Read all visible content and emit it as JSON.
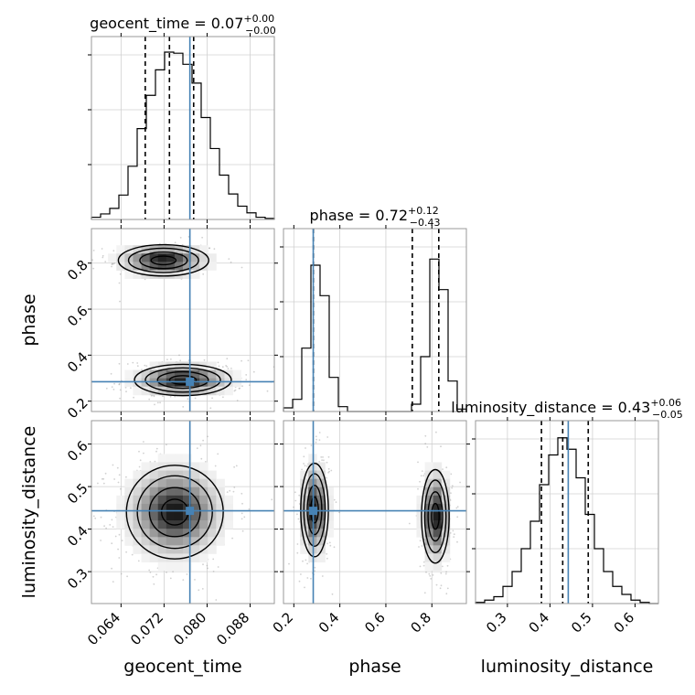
{
  "chart_data": {
    "type": "corner",
    "parameters": [
      "geocent_time",
      "phase",
      "luminosity_distance"
    ],
    "truth_color": "#4682b4",
    "titles": [
      {
        "param": "geocent_time",
        "prefix": "geocent_time = ",
        "value": "0.07",
        "plus": "+0.00",
        "minus": "−0.00"
      },
      {
        "param": "phase",
        "prefix": "phase = ",
        "value": "0.72",
        "plus": "+0.12",
        "minus": "−0.43"
      },
      {
        "param": "luminosity_distance",
        "prefix": "luminosity_distance = ",
        "value": "0.43",
        "plus": "+0.06",
        "minus": "−0.05"
      }
    ],
    "axes": {
      "geocent_time": {
        "range": [
          0.0585,
          0.0925
        ],
        "ticks": [
          0.064,
          0.072,
          0.08,
          0.088
        ],
        "tick_labels": [
          "0.064",
          "0.072",
          "0.080",
          "0.088"
        ]
      },
      "phase": {
        "range": [
          0.155,
          0.95
        ],
        "ticks": [
          0.2,
          0.4,
          0.6,
          0.8
        ],
        "tick_labels": [
          "0.2",
          "0.4",
          "0.6",
          "0.8"
        ]
      },
      "luminosity_distance": {
        "range": [
          0.225,
          0.655
        ],
        "ticks": [
          0.3,
          0.4,
          0.5,
          0.6
        ],
        "tick_labels": [
          "0.3",
          "0.4",
          "0.5",
          "0.6"
        ]
      }
    },
    "truths": {
      "geocent_time": 0.0768,
      "phase": 0.2843,
      "luminosity_distance": 0.443
    },
    "quantiles": {
      "geocent_time": [
        0.0685,
        0.073,
        0.0775
      ],
      "phase": [
        0.285,
        0.715,
        0.83
      ],
      "luminosity_distance": [
        0.38,
        0.43,
        0.49
      ]
    },
    "histograms": {
      "geocent_time": {
        "edges": [
          0.0585,
          0.0602,
          0.0619,
          0.0636,
          0.0653,
          0.067,
          0.0687,
          0.0704,
          0.0721,
          0.0738,
          0.0755,
          0.0772,
          0.0789,
          0.0806,
          0.0823,
          0.084,
          0.0857,
          0.0874,
          0.0891,
          0.0908,
          0.0925
        ],
        "counts": [
          2,
          5,
          10,
          22,
          48,
          82,
          112,
          135,
          151,
          150,
          140,
          123,
          92,
          64,
          40,
          23,
          12,
          6,
          2,
          1
        ],
        "ymax": 165
      },
      "phase": {
        "edges": [
          0.155,
          0.19475,
          0.2345,
          0.27425,
          0.314,
          0.35375,
          0.3935,
          0.43325,
          0.473,
          0.51275,
          0.5525,
          0.59225,
          0.632,
          0.67175,
          0.7115,
          0.75125,
          0.791,
          0.83075,
          0.8705,
          0.91025,
          0.95
        ],
        "counts": [
          3,
          10,
          52,
          120,
          95,
          28,
          4,
          0,
          0,
          0,
          0,
          0,
          0,
          0,
          6,
          45,
          125,
          100,
          25,
          2
        ],
        "ymax": 150
      },
      "luminosity_distance": {
        "edges": [
          0.225,
          0.2465,
          0.268,
          0.2895,
          0.311,
          0.3325,
          0.354,
          0.3755,
          0.397,
          0.4185,
          0.44,
          0.4615,
          0.483,
          0.5045,
          0.526,
          0.5475,
          0.569,
          0.5905,
          0.612,
          0.6335,
          0.655
        ],
        "counts": [
          1,
          3,
          6,
          15,
          28,
          48,
          72,
          104,
          130,
          145,
          135,
          110,
          78,
          48,
          28,
          15,
          8,
          3,
          1,
          0
        ],
        "ymax": 160
      }
    },
    "density_modes": {
      "phase_vs_geocent_time": [
        {
          "cx": 0.0719,
          "cy": 0.812,
          "sx": 0.0042,
          "sy": 0.034,
          "w": 0.45
        },
        {
          "cx": 0.0755,
          "cy": 0.292,
          "sx": 0.0045,
          "sy": 0.034,
          "w": 0.55
        }
      ],
      "luminosity_distance_vs_geocent_time": [
        {
          "cx": 0.074,
          "cy": 0.44,
          "sx": 0.0045,
          "sy": 0.055,
          "w": 1.0
        }
      ],
      "luminosity_distance_vs_phase": [
        {
          "cx": 0.29,
          "cy": 0.445,
          "sx": 0.03,
          "sy": 0.055,
          "w": 0.5
        },
        {
          "cx": 0.815,
          "cy": 0.43,
          "sx": 0.03,
          "sy": 0.055,
          "w": 0.5
        }
      ]
    }
  }
}
